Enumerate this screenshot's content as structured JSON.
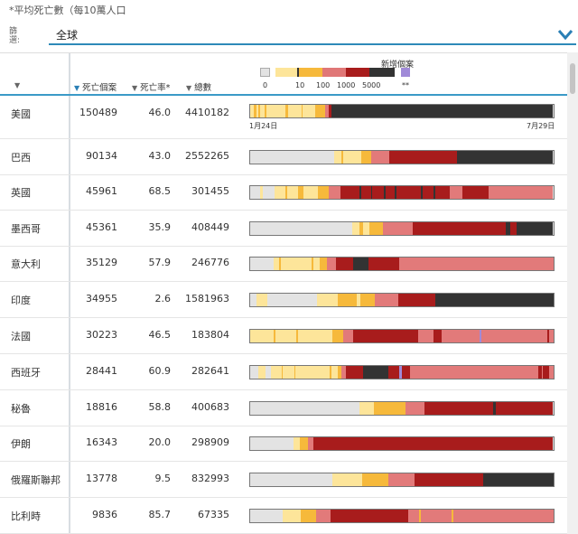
{
  "footnote": "*平均死亡數（每10萬人口",
  "filter": {
    "label": "篩選:",
    "value": "全球"
  },
  "headers": {
    "deaths": "死亡個案",
    "rate": "死亡率*",
    "total": "總數"
  },
  "legend": {
    "title": "新增個案",
    "labels": [
      "0",
      "10",
      "100",
      "1000",
      "5000",
      "**"
    ],
    "colors": [
      "#e3e3e3",
      "#fde59a",
      "#f6b93b",
      "#f3c34a",
      "#e07777",
      "#a81c1c",
      "#333333",
      "#a08ad8"
    ]
  },
  "date_start": "1月24日",
  "date_end": "7月29日",
  "colors": {
    "g": "#e3e3e3",
    "y": "#fde59a",
    "o": "#f6b93b",
    "p": "#e27a7a",
    "r": "#a81c1c",
    "k": "#333333",
    "v": "#a08ad8"
  },
  "rows": [
    {
      "name": "美國",
      "deaths": "150489",
      "rate": "46.0",
      "total": "4410182",
      "strip": "yyooyoyyyoyyyyyyyyyyyyooyyyyyyyyoyyyyyyyyoooooopprrkkkkkkkkkkkkkkkkkkkkkkkkkkkkkkkkkkkkkkkkkkkkkkkkkkkkkkkkkkkkkkkkkkkkkkkkkkkkkkkkkkkkkkkkkkkkkkkkkkkkkkkkkkkkkkkkkkkkkkkkkkkkkkkkkkkkkkkkkkk"
    },
    {
      "name": "巴西",
      "deaths": "90134",
      "rate": "43.0",
      "total": "2552265",
      "strip": "ggggggggggggggggggggggggggggggggggggggggggggggggggggggggyyyyyoyyyyyyyyyyyyooooooopppppppppppprrrrrrrrrrrrrrrrrrrrrrrrrrrrrrrrrrrrrrrrrrrrrkkkkkkkkkkkkkkkkkkkkkkkkkkkkkkkkkkkkkkkkkkkkkkkkkkkkkkkkkkkkkkkk"
    },
    {
      "name": "英國",
      "deaths": "45961",
      "rate": "68.5",
      "total": "301455",
      "strip": "ggggggyygggggggyyyyyyyoyyyyyyyoooyyyyyyyyyoooooooppppppprrrrrrrrrrrrkrrrrrrkrrrrrrrkrrrrrrkrrrrrrrrrrrrrrrkrrrrrrrkrrrrrrrrrpppppppprrrrrrrrrrrrrrrrpppppppppppppppppppppppppppppppppppppppp"
    },
    {
      "name": "墨西哥",
      "deaths": "45361",
      "rate": "35.9",
      "total": "408449",
      "strip": "gggggggggggggggggggggggggggggggggggggggggggggggggggggggggggggggggyyyyyooyyyyoooooooooppppppppppppppppppprrrrrrrrrrrrrrrrrrrrrrrrrrrrrrrrrrrrrrrrrrrrrrrrrrrrrrrrrrrkkkrrrrkkkkkkkkkkkkkkkkkkkkkkk"
    },
    {
      "name": "意大利",
      "deaths": "35129",
      "rate": "57.9",
      "total": "246776",
      "strip": "gggggggggggggggyyyyoyyyyyyyyyyyyyyyyyyyyoyyyyooooopppppprrrrrrrrrrrkkkkkkkkkkrrrrrrrrrrrrrrrrrrrrppppppppppppppppppppppppppppppppppppppppppppppppppppppppppppppppppppppppppppppppppppppppppppppppppppp"
    },
    {
      "name": "印度",
      "deaths": "34955",
      "rate": "2.6",
      "total": "1581963",
      "strip": "ggggyyyyyyygggggggggggggggggggggggggggggggyyyyyyyyyyyyyooooooooooooyyoooooooooppppppppppppppprrrrrrrrrrrrrrrrrrrrrrrkkkkkkkkkkkkkkkkkkkkkkkkkkkkkkkkkkkkkkkkkkkkkkkkkkkkkkkkkkkkkkkkkkkkkkkkkkk"
    },
    {
      "name": "法國",
      "deaths": "30223",
      "rate": "46.5",
      "total": "183804",
      "strip": "yyyyyyyyyyyyyyyoyyyyyyyyyyyyyoyyyyyyyyyyyyyyyyyyyyyyooooooopppppprrrrrrrrrrrrrrrrrrrrrrrrrrrrrrrrrrrrrrrrrpppppppppprrrrrppppppppppppppppppppppppvpppppppppppppppppppppppppppppppppppppppppprppp"
    },
    {
      "name": "西班牙",
      "deaths": "28441",
      "rate": "60.9",
      "total": "282641",
      "strip": "gggggyyyyygggyyyyyyyoyyyyyyyoyyyyyyyyyyyyyyyyyyyyyyoyyyyooppprrrrrrrrrrrkkkkkkkkkkkkkkkkrrrrrrrvvrrrrrpppppppppppppppppppppppppppppppppppppppppppppppppppppppppppppppppppppppppppppppppprrprrrrppp"
    },
    {
      "name": "秘魯",
      "deaths": "18816",
      "rate": "58.8",
      "total": "400683",
      "strip": "ggggggggggggggggggggggggggggggggggggggggggggggggggggggggggggggggggggggyyyyyyyyyoooooooooooooooooooopppppppppppprrrrrrrrrrrrrrrrrrrrrrrrrrrrrrrrrrrrrrrrrrrrkkrrrrrrrrrrrrrrrrrrrrrrrrrrrrrrrrrrrr"
    },
    {
      "name": "伊朗",
      "deaths": "16343",
      "rate": "20.0",
      "total": "298909",
      "strip": "ggggggggggggggggggggggggggggyyyyooooopppprrrrrrrrrrrrrrrrrrrrrrrrrrrrrrrrrrrrrrrrrrrrrrrrrrrrrrrrrrrrrrrrrrrrrrrrrrrrrrrrrrrrrrrrrrrrrrrrrrrrrrrrrrrrrrrrrrrrrrrrrrrrrrrrrrrrrrrrrrrrrrrrrrrrrrrrrr"
    },
    {
      "name": "俄羅斯聯邦",
      "deaths": "13778",
      "rate": "9.5",
      "total": "832993",
      "strip": "gggggggggggggggggggggggggggggggggggggggggggggggggggggyyyyyyyyyyyyyyyyyyyoooooooooooooooooppppppppppppppppprrrrrrrrrrrrrrrrrrrrrrrrrrrrrrrrrrrrrrrrrrrrkkkkkkkkkkkkkkkkkkkkkkkkkkkkkkkkkkkkkkkkkkkkkk"
    },
    {
      "name": "比利時",
      "deaths": "9836",
      "rate": "85.7",
      "total": "67335",
      "strip": "gggggggggggggggggggggyyyyyyyyyyyyooooooooooppppppppprrrrrrrrrrrrrrrrrrrrrrrrrrrrrrrrrrrrrrrrrrrrrrrrrrrpppppppoppppppppppppppppppppopppppppppppppppppppppppppppppppppppppppppppppppppppppppppppppppppp"
    }
  ]
}
